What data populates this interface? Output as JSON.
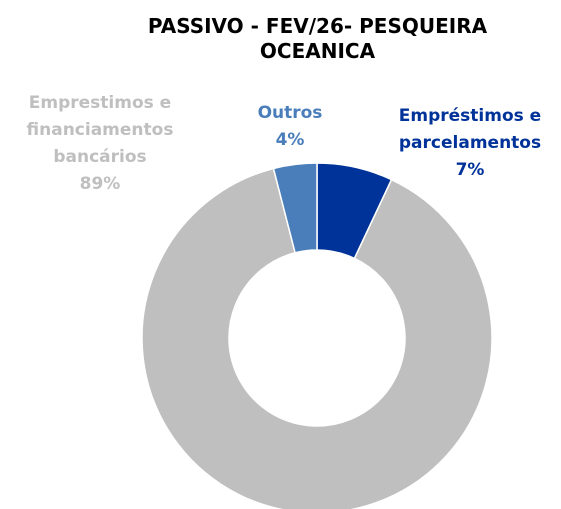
{
  "chart_data": {
    "type": "donut",
    "title": "PASSIVO - FEV/26- PESQUEIRA OCEANICA",
    "categories": [
      "Empréstimos e parcelamentos",
      "Emprestimos e financiamentos bancários",
      "Outros"
    ],
    "values": [
      7,
      89,
      4
    ],
    "value_labels": [
      "7%",
      "89%",
      "4%"
    ],
    "colors": [
      "#003399",
      "#bfbfbf",
      "#4a7ebb"
    ]
  }
}
